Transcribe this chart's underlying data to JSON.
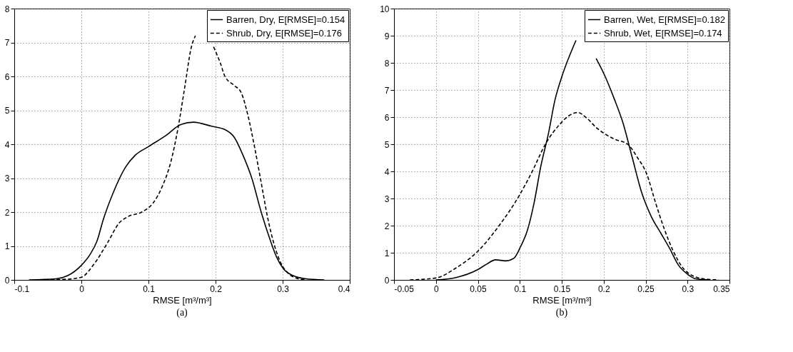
{
  "chart_data": [
    {
      "type": "line",
      "xlabel": "RMSE [m³/m³]",
      "annotations": [
        "(a)"
      ],
      "xlim": [
        -0.1,
        0.4
      ],
      "xticks": [
        -0.1,
        0,
        0.1,
        0.2,
        0.3,
        0.4
      ],
      "ylim": [
        0,
        8
      ],
      "yticks": [
        0,
        1,
        2,
        3,
        4,
        5,
        6,
        7,
        8
      ],
      "grid": true,
      "legend": "top right",
      "series": [
        {
          "name": "Barren, Dry, E[RMSE]=0.154",
          "color": "#000000",
          "line_style": "solid",
          "x": [
            -0.078,
            -0.038,
            -0.021,
            0.0,
            0.013,
            0.023,
            0.033,
            0.046,
            0.066,
            0.08,
            0.1,
            0.127,
            0.147,
            0.167,
            0.194,
            0.214,
            0.228,
            0.241,
            0.254,
            0.268,
            0.281,
            0.291,
            0.301,
            0.315,
            0.335,
            0.362
          ],
          "values": [
            0,
            0.03,
            0.12,
            0.43,
            0.75,
            1.13,
            1.8,
            2.5,
            3.33,
            3.67,
            3.93,
            4.27,
            4.57,
            4.65,
            4.53,
            4.43,
            4.2,
            3.67,
            3.0,
            2.0,
            1.2,
            0.67,
            0.33,
            0.13,
            0.03,
            0
          ]
        },
        {
          "name": "Shrub, Dry, E[RMSE]=0.176",
          "color": "#000000",
          "line_style": "dashed",
          "x": [
            -0.054,
            -0.021,
            0.0,
            0.019,
            0.04,
            0.056,
            0.07,
            0.09,
            0.107,
            0.12,
            0.134,
            0.144,
            0.154,
            0.164,
            0.17,
            0.182,
            0.194,
            0.197,
            0.207,
            0.214,
            0.228,
            0.238,
            0.248,
            0.258,
            0.268,
            0.278,
            0.288,
            0.298,
            0.308,
            0.321,
            0.335
          ],
          "values": [
            0,
            0.02,
            0.08,
            0.47,
            1.13,
            1.67,
            1.87,
            2.0,
            2.27,
            2.73,
            3.53,
            4.47,
            5.67,
            6.87,
            7.2,
            null,
            null,
            6.87,
            6.4,
            6.0,
            5.73,
            5.53,
            4.87,
            3.93,
            2.87,
            1.8,
            1.0,
            0.47,
            0.2,
            0.05,
            0
          ]
        }
      ]
    },
    {
      "type": "line",
      "xlabel": "RMSE [m³/m³]",
      "annotations": [
        "(b)"
      ],
      "xlim": [
        -0.05,
        0.35
      ],
      "xticks": [
        -0.05,
        0,
        0.05,
        0.1,
        0.15,
        0.2,
        0.25,
        0.3,
        0.35
      ],
      "ylim": [
        0,
        10
      ],
      "yticks": [
        0,
        1,
        2,
        3,
        4,
        5,
        6,
        7,
        8,
        9,
        10
      ],
      "grid": true,
      "legend": "top right",
      "series": [
        {
          "name": "Barren, Wet, E[RMSE]=0.182",
          "color": "#000000",
          "line_style": "solid",
          "x": [
            0.0,
            0.023,
            0.05,
            0.061,
            0.071,
            0.083,
            0.093,
            0.101,
            0.109,
            0.117,
            0.125,
            0.134,
            0.142,
            0.15,
            0.158,
            0.167,
            0.174,
            0.181,
            0.191,
            0.202,
            0.212,
            0.223,
            0.234,
            0.245,
            0.257,
            0.268,
            0.279,
            0.289,
            0.3,
            0.31,
            0.326
          ],
          "values": [
            0,
            0.08,
            0.38,
            0.59,
            0.74,
            0.7,
            0.8,
            1.23,
            1.82,
            2.83,
            4.18,
            5.37,
            6.64,
            7.48,
            8.16,
            8.83,
            null,
            null,
            8.16,
            7.48,
            6.72,
            5.79,
            4.52,
            3.25,
            2.32,
            1.73,
            1.14,
            0.55,
            0.21,
            0.04,
            0
          ]
        },
        {
          "name": "Shrub, Wet, E[RMSE]=0.174",
          "color": "#000000",
          "line_style": "dashed",
          "x": [
            -0.031,
            0.0,
            0.023,
            0.05,
            0.077,
            0.099,
            0.115,
            0.131,
            0.147,
            0.158,
            0.169,
            0.18,
            0.191,
            0.202,
            0.212,
            0.229,
            0.24,
            0.251,
            0.262,
            0.272,
            0.283,
            0.294,
            0.305,
            0.321,
            0.337
          ],
          "values": [
            0,
            0.07,
            0.42,
            1.06,
            2.07,
            3.09,
            4.01,
            5.03,
            5.71,
            6.04,
            6.17,
            5.96,
            5.62,
            5.37,
            5.2,
            4.99,
            4.52,
            3.93,
            2.83,
            1.9,
            1.06,
            0.46,
            0.17,
            0.03,
            0
          ]
        }
      ]
    }
  ]
}
